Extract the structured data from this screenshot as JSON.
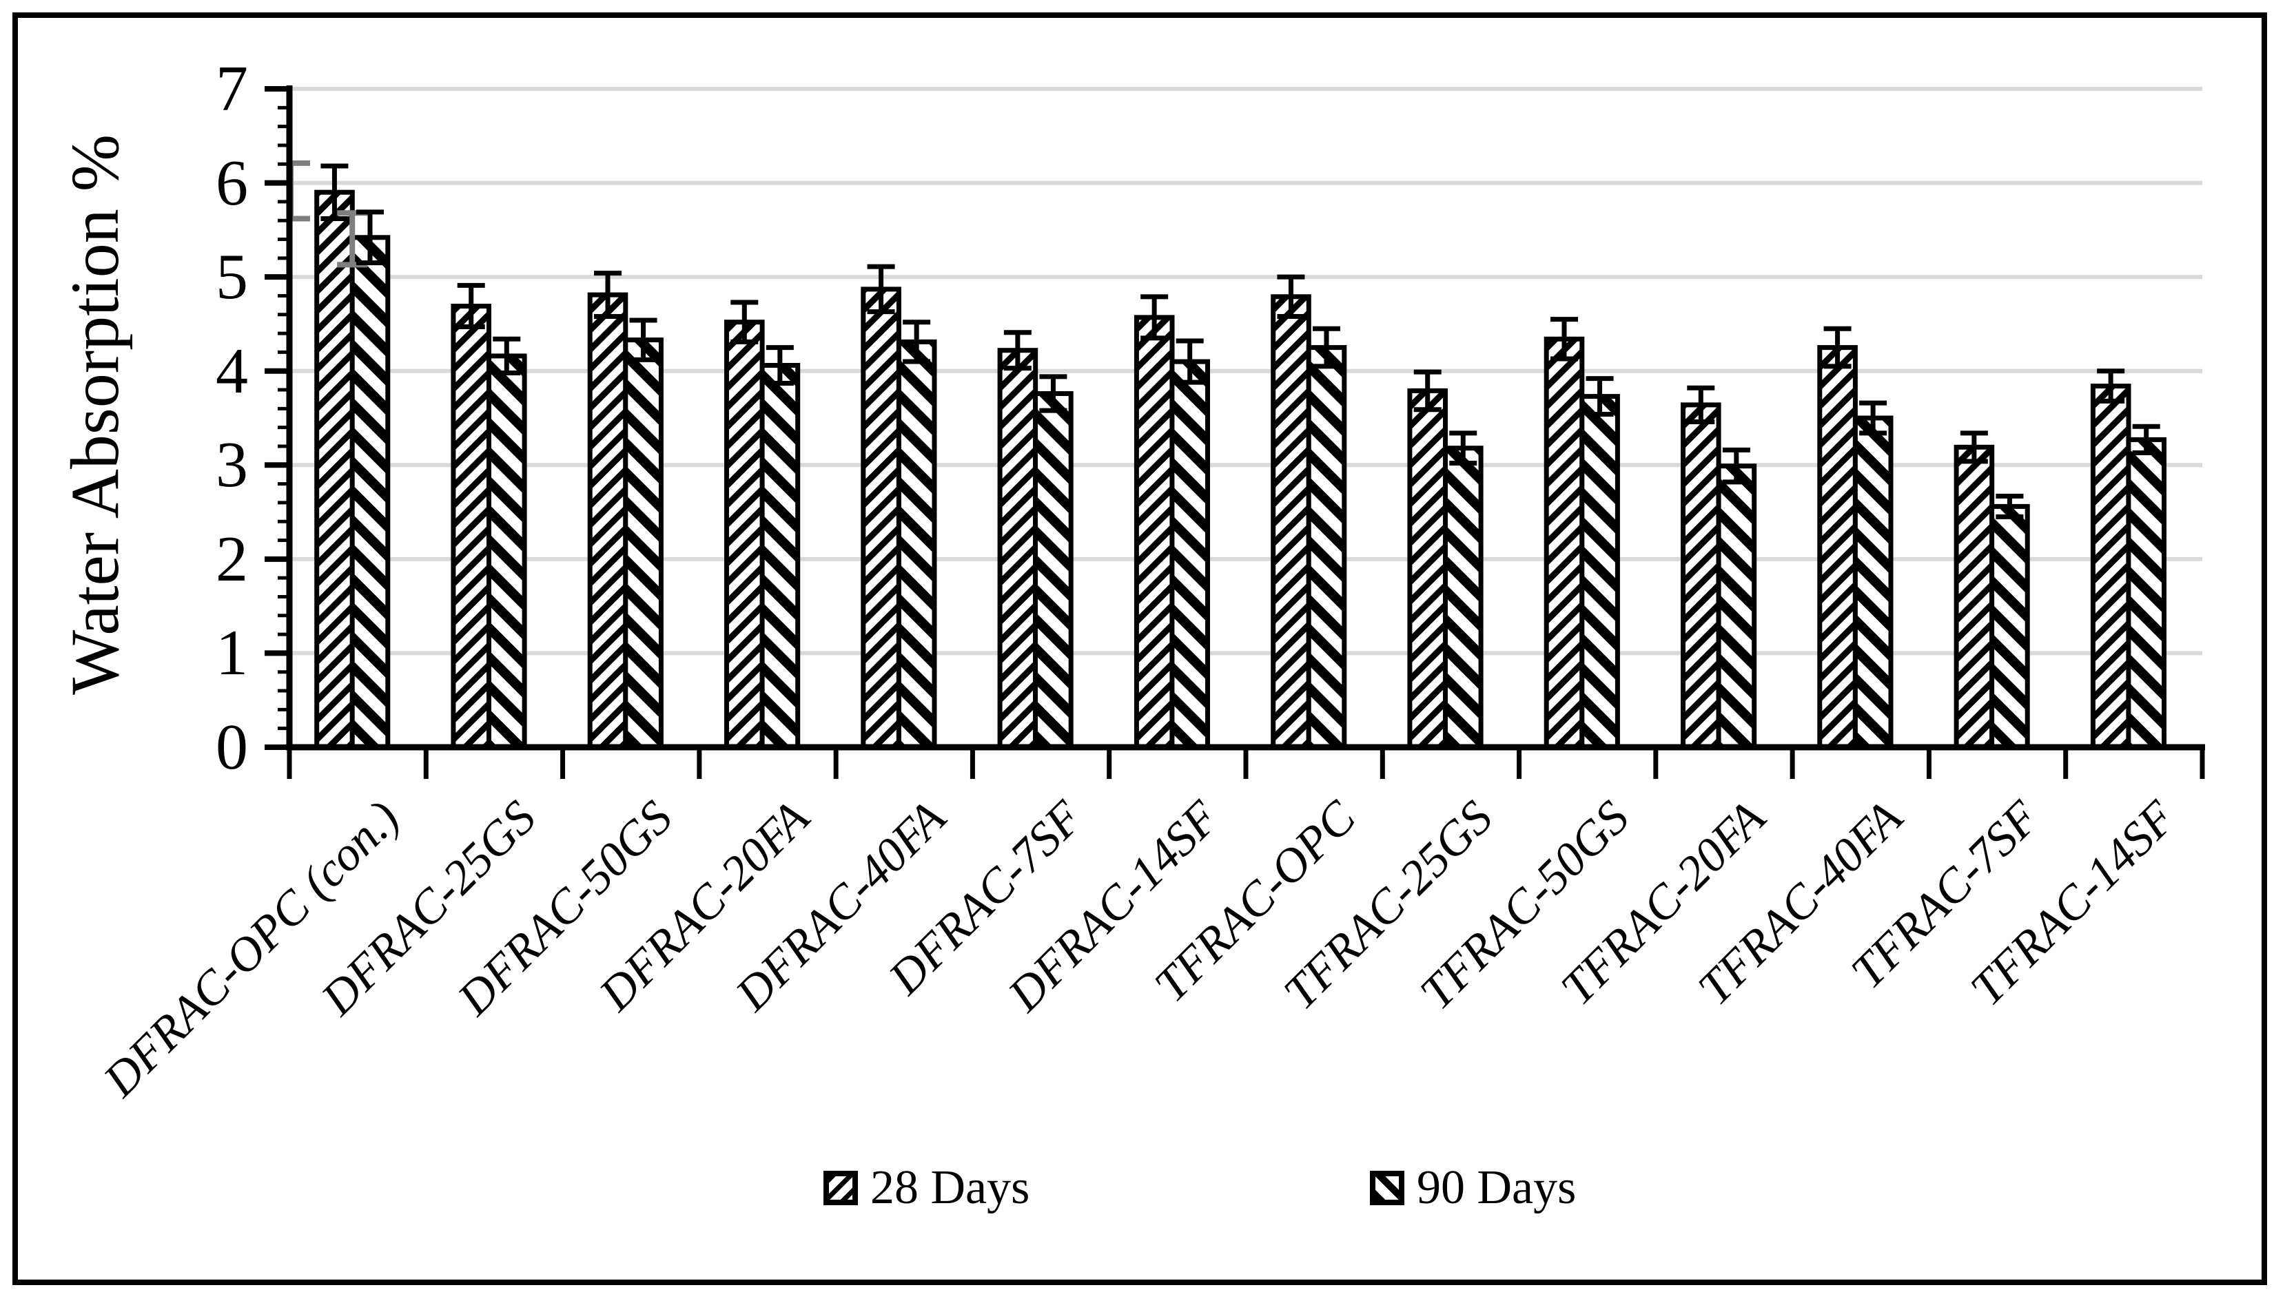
{
  "colors": {
    "ink": "#000000",
    "background": "#ffffff",
    "gridline": "#d9d9d9",
    "gray_artifact": "#7f7f7f"
  },
  "axis": {
    "ytick_labels": [
      "0",
      "1",
      "2",
      "3",
      "4",
      "5",
      "6",
      "7"
    ]
  },
  "legend": {
    "items": [
      {
        "label": "28 Days"
      },
      {
        "label": "90 Days"
      }
    ]
  },
  "artifacts": {
    "gray_error_bars": [
      {
        "anchor": "y-axis",
        "low": 5.62,
        "high": 6.21
      },
      {
        "anchor": "first-group-90day-bar-left-edge",
        "low": 5.13,
        "high": 5.68
      }
    ]
  },
  "chart_data": {
    "type": "bar",
    "title": "",
    "xlabel": "",
    "ylabel": "Water Absorption %",
    "ylim": [
      0,
      7
    ],
    "ytick_interval": 1,
    "yminor_tick_interval": 0.2,
    "grid": "horizontal",
    "legend_position": "bottom",
    "bar_style": "white fill with black hatch, black outline, black error bars",
    "categories": [
      "DFRAC-OPC (con.)",
      "DFRAC-25GS",
      "DFRAC-50GS",
      "DFRAC-20FA",
      "DFRAC-40FA",
      "DFRAC-7SF",
      "DFRAC-14SF",
      "TFRAC-OPC",
      "TFRAC-25GS",
      "TFRAC-50GS",
      "TFRAC-20FA",
      "TFRAC-40FA",
      "TFRAC-7SF",
      "TFRAC-14SF"
    ],
    "series": [
      {
        "name": "28 Days",
        "hatch": "/",
        "values": [
          5.9,
          4.69,
          4.81,
          4.52,
          4.87,
          4.22,
          4.57,
          4.79,
          3.79,
          4.34,
          3.64,
          4.25,
          3.19,
          3.84
        ],
        "errors": [
          0.28,
          0.22,
          0.23,
          0.21,
          0.24,
          0.19,
          0.22,
          0.21,
          0.2,
          0.21,
          0.18,
          0.2,
          0.15,
          0.16
        ]
      },
      {
        "name": "90 Days",
        "hatch": "\\",
        "values": [
          5.42,
          4.16,
          4.33,
          4.06,
          4.31,
          3.76,
          4.1,
          4.25,
          3.18,
          3.73,
          2.99,
          3.5,
          2.56,
          3.27
        ],
        "errors": [
          0.27,
          0.18,
          0.21,
          0.19,
          0.21,
          0.18,
          0.22,
          0.2,
          0.16,
          0.19,
          0.17,
          0.16,
          0.11,
          0.14
        ]
      }
    ]
  }
}
